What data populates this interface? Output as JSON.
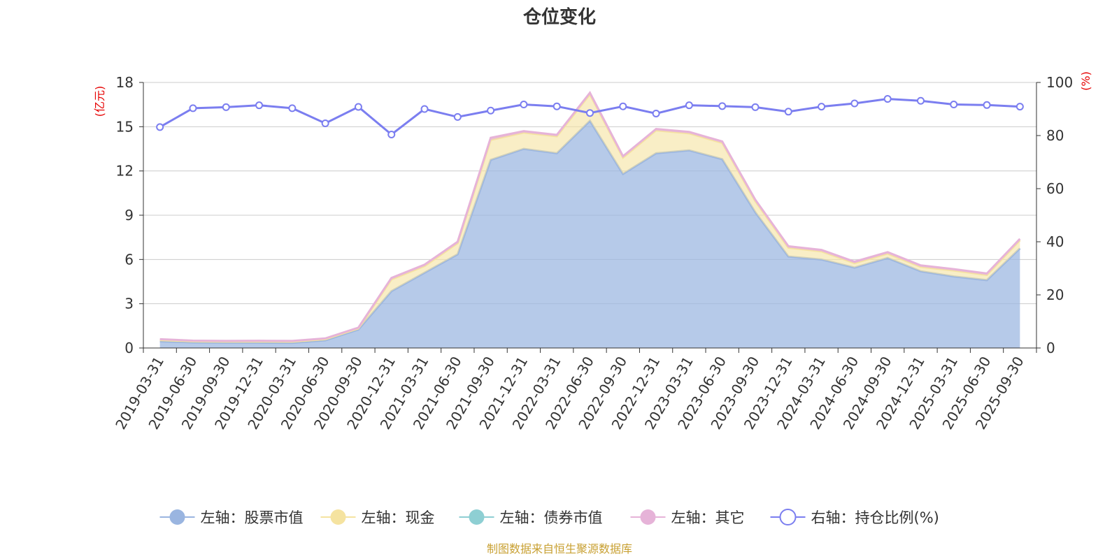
{
  "chart_data": {
    "type": "area",
    "title": "仓位变化",
    "left_axis_unit": "(亿元)",
    "right_axis_unit": "(%)",
    "ylim_left": [
      0,
      18
    ],
    "yticks_left": [
      "0",
      "3",
      "6",
      "9",
      "12",
      "15",
      "18"
    ],
    "ylim_right": [
      0,
      100
    ],
    "yticks_right": [
      "0",
      "20",
      "40",
      "60",
      "80",
      "100"
    ],
    "grid": true,
    "legend_position": "bottom",
    "categories": [
      "2019-03-31",
      "2019-06-30",
      "2019-09-30",
      "2019-12-31",
      "2020-03-31",
      "2020-06-30",
      "2020-09-30",
      "2020-12-31",
      "2021-03-31",
      "2021-06-30",
      "2021-09-30",
      "2021-12-31",
      "2022-03-31",
      "2022-06-30",
      "2022-09-30",
      "2022-12-31",
      "2023-03-31",
      "2023-06-30",
      "2023-09-30",
      "2023-12-31",
      "2024-03-31",
      "2024-06-30",
      "2024-09-30",
      "2024-12-31",
      "2025-03-31",
      "2025-06-30",
      "2025-09-30"
    ],
    "series": [
      {
        "name": "左轴：股票市值",
        "axis": "left",
        "color": "#9ab5e0",
        "values": [
          0.45,
          0.38,
          0.36,
          0.36,
          0.35,
          0.52,
          1.25,
          3.85,
          5.1,
          6.35,
          12.75,
          13.5,
          13.2,
          15.4,
          11.8,
          13.2,
          13.4,
          12.8,
          9.2,
          6.2,
          6.0,
          5.45,
          6.1,
          5.2,
          4.85,
          4.6,
          6.75
        ]
      },
      {
        "name": "左轴：现金",
        "axis": "left",
        "color": "#f5e3a0",
        "values": [
          0.1,
          0.07,
          0.07,
          0.08,
          0.08,
          0.08,
          0.08,
          0.8,
          0.45,
          0.75,
          1.35,
          1.1,
          1.15,
          1.8,
          1.1,
          1.55,
          1.15,
          1.1,
          0.75,
          0.6,
          0.55,
          0.3,
          0.3,
          0.3,
          0.4,
          0.35,
          0.55
        ]
      },
      {
        "name": "左轴：债券市值",
        "axis": "left",
        "color": "#8ecfd3",
        "values": [
          0,
          0,
          0,
          0,
          0,
          0,
          0,
          0,
          0,
          0,
          0,
          0,
          0,
          0,
          0,
          0,
          0,
          0,
          0,
          0,
          0,
          0,
          0,
          0,
          0,
          0,
          0
        ]
      },
      {
        "name": "左轴：其它",
        "axis": "left",
        "color": "#e6b3d8",
        "values": [
          0.05,
          0.05,
          0.05,
          0.05,
          0.05,
          0.05,
          0.05,
          0.1,
          0.1,
          0.1,
          0.15,
          0.1,
          0.1,
          0.1,
          0.1,
          0.1,
          0.1,
          0.1,
          0.1,
          0.1,
          0.1,
          0.1,
          0.1,
          0.1,
          0.1,
          0.1,
          0.1
        ]
      },
      {
        "name": "右轴：持仓比例(%)",
        "axis": "right",
        "color": "#7b7ef0",
        "values": [
          83.2,
          90.3,
          90.7,
          91.4,
          90.3,
          84.6,
          90.8,
          80.4,
          90.0,
          87.0,
          89.4,
          91.7,
          91.0,
          88.5,
          91.0,
          88.3,
          91.4,
          91.1,
          90.7,
          89.0,
          90.9,
          92.1,
          93.8,
          93.1,
          91.7,
          91.5,
          90.9
        ]
      }
    ],
    "source_text": "制图数据来自恒生聚源数据库"
  }
}
